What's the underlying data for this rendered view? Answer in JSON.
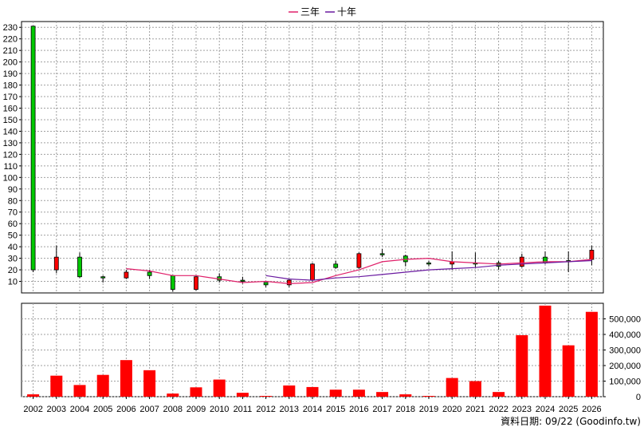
{
  "legend": [
    {
      "name": "三年",
      "color": "#e0206a"
    },
    {
      "name": "十年",
      "color": "#6a1aa0"
    }
  ],
  "footer": "資料日期: 09/22  (Goodinfo.tw)",
  "colors": {
    "up": "#ff0000",
    "down": "#00c800",
    "volume": "#ff0000",
    "grid": "#a0a0a0",
    "ma3": "#e0206a",
    "ma10": "#6a1aa0"
  },
  "chart_data": [
    {
      "type": "candlestick",
      "title": "",
      "x": [
        "2002",
        "2003",
        "2004",
        "2005",
        "2006",
        "2007",
        "2008",
        "2009",
        "2010",
        "2011",
        "2012",
        "2013",
        "2014",
        "2015",
        "2016",
        "2017",
        "2018",
        "2019",
        "2020",
        "2021",
        "2022",
        "2023",
        "2024",
        "2025",
        "2026"
      ],
      "ylim": [
        0,
        235
      ],
      "yticks": [
        10,
        20,
        30,
        40,
        50,
        60,
        70,
        80,
        90,
        100,
        110,
        120,
        130,
        140,
        150,
        160,
        170,
        180,
        190,
        200,
        210,
        220,
        230
      ],
      "grid": true,
      "legend_position": "top-center",
      "candles": [
        {
          "x": "2002",
          "open": 231,
          "high": 231,
          "low": 18,
          "close": 20
        },
        {
          "x": "2003",
          "open": 20,
          "high": 41,
          "low": 17,
          "close": 31
        },
        {
          "x": "2004",
          "open": 31,
          "high": 35,
          "low": 13,
          "close": 14
        },
        {
          "x": "2005",
          "open": 14,
          "high": 15,
          "low": 9,
          "close": 13
        },
        {
          "x": "2006",
          "open": 13,
          "high": 20,
          "low": 12,
          "close": 18
        },
        {
          "x": "2007",
          "open": 18,
          "high": 20,
          "low": 12,
          "close": 15
        },
        {
          "x": "2008",
          "open": 15,
          "high": 15,
          "low": 1,
          "close": 3
        },
        {
          "x": "2009",
          "open": 3,
          "high": 15,
          "low": 2,
          "close": 14
        },
        {
          "x": "2010",
          "open": 14,
          "high": 17,
          "low": 9,
          "close": 11
        },
        {
          "x": "2011",
          "open": 11,
          "high": 14,
          "low": 8,
          "close": 10
        },
        {
          "x": "2012",
          "open": 9,
          "high": 9,
          "low": 5,
          "close": 7
        },
        {
          "x": "2013",
          "open": 7,
          "high": 12,
          "low": 5,
          "close": 11
        },
        {
          "x": "2014",
          "open": 11,
          "high": 26,
          "low": 10,
          "close": 25
        },
        {
          "x": "2015",
          "open": 25,
          "high": 28,
          "low": 21,
          "close": 22
        },
        {
          "x": "2016",
          "open": 22,
          "high": 35,
          "low": 21,
          "close": 34
        },
        {
          "x": "2017",
          "open": 34,
          "high": 38,
          "low": 31,
          "close": 33
        },
        {
          "x": "2018",
          "open": 32,
          "high": 33,
          "low": 23,
          "close": 27
        },
        {
          "x": "2019",
          "open": 26,
          "high": 28,
          "low": 23,
          "close": 25
        },
        {
          "x": "2020",
          "open": 25,
          "high": 36,
          "low": 20,
          "close": 27
        },
        {
          "x": "2021",
          "open": 26,
          "high": 35,
          "low": 22,
          "close": 25
        },
        {
          "x": "2022",
          "open": 26,
          "high": 28,
          "low": 20,
          "close": 23
        },
        {
          "x": "2023",
          "open": 23,
          "high": 34,
          "low": 22,
          "close": 31
        },
        {
          "x": "2024",
          "open": 31,
          "high": 36,
          "low": 25,
          "close": 26
        },
        {
          "x": "2025",
          "open": 28,
          "high": 36,
          "low": 18,
          "close": 27
        },
        {
          "x": "2026",
          "open": 29,
          "high": 41,
          "low": 24,
          "close": 37
        }
      ],
      "series": [
        {
          "name": "三年",
          "values": [
            null,
            null,
            null,
            null,
            21,
            19,
            15,
            15,
            12,
            9,
            10,
            8,
            9,
            15,
            20,
            27,
            29,
            30,
            27,
            26,
            25,
            26,
            27,
            27,
            29
          ]
        },
        {
          "name": "十年",
          "values": [
            null,
            null,
            null,
            null,
            null,
            null,
            null,
            null,
            null,
            null,
            15,
            12,
            11,
            13,
            14,
            16,
            18,
            20,
            21,
            22,
            24,
            25,
            26,
            27,
            28
          ]
        }
      ]
    },
    {
      "type": "bar",
      "title": "",
      "categories": [
        "2002",
        "2003",
        "2004",
        "2005",
        "2006",
        "2007",
        "2008",
        "2009",
        "2010",
        "2011",
        "2012",
        "2013",
        "2014",
        "2015",
        "2016",
        "2017",
        "2018",
        "2019",
        "2020",
        "2021",
        "2022",
        "2023",
        "2024",
        "2025",
        "2026"
      ],
      "values": [
        15000,
        135000,
        75000,
        140000,
        235000,
        170000,
        20000,
        60000,
        110000,
        25000,
        5000,
        72000,
        62000,
        45000,
        45000,
        30000,
        15000,
        5000,
        120000,
        100000,
        30000,
        395000,
        585000,
        330000,
        545000
      ],
      "ylim": [
        0,
        600000
      ],
      "yticks": [
        0,
        100000,
        200000,
        300000,
        400000,
        500000
      ],
      "yticklabels": [
        "0",
        "100,000",
        "200,000",
        "300,000",
        "400,000",
        "500,000"
      ],
      "grid": true
    }
  ]
}
